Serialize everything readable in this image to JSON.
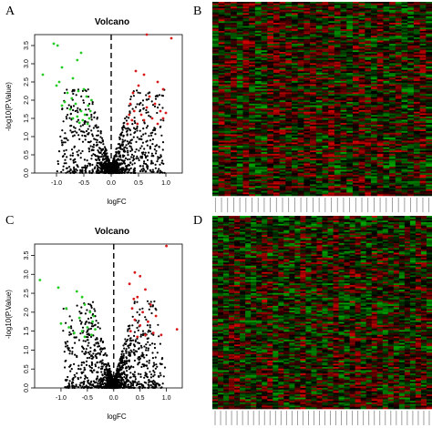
{
  "panels": [
    {
      "letter": "A"
    },
    {
      "letter": "B"
    },
    {
      "letter": "C"
    },
    {
      "letter": "D"
    }
  ],
  "colors": {
    "up": "#d7191c",
    "down": "#22cc22",
    "ns": "#000000",
    "heat_low": "#00a000",
    "heat_mid": "#000000",
    "heat_high": "#d00000"
  },
  "chart_data": [
    {
      "panel": "A",
      "type": "scatter",
      "title": "Volcano",
      "xlabel": "logFC",
      "ylabel": "-log10(P.Value)",
      "xlim": [
        -1.4,
        1.3
      ],
      "ylim": [
        0,
        3.8
      ],
      "xticks": [
        "-1.0",
        "-0.5",
        "0.0",
        "0.5",
        "1.0"
      ],
      "xtick_values": [
        -1.0,
        -0.5,
        0.0,
        0.5,
        1.0
      ],
      "yticks": [
        "0.0",
        "0.5",
        "1.0",
        "1.5",
        "2.0",
        "2.5",
        "3.0",
        "3.5"
      ],
      "ytick_values": [
        0,
        0.5,
        1,
        1.5,
        2,
        2.5,
        3,
        3.5
      ],
      "reference_line_x": 0,
      "series": [
        {
          "name": "down",
          "color": "#22cc22",
          "points": [
            [
              -1.05,
              3.55
            ],
            [
              -0.98,
              3.5
            ],
            [
              -1.25,
              2.7
            ],
            [
              -0.9,
              2.9
            ],
            [
              -0.7,
              2.6
            ],
            [
              -0.55,
              3.3
            ],
            [
              -0.62,
              3.1
            ],
            [
              -1.0,
              2.4
            ],
            [
              -0.95,
              2.5
            ],
            [
              -0.8,
              2.2
            ],
            [
              -0.72,
              2.05
            ],
            [
              -0.85,
              1.95
            ],
            [
              -0.6,
              2.25
            ],
            [
              -0.5,
              2.3
            ],
            [
              -0.45,
              2.1
            ],
            [
              -0.42,
              1.85
            ],
            [
              -0.55,
              1.7
            ],
            [
              -0.65,
              1.9
            ],
            [
              -0.75,
              1.75
            ],
            [
              -0.48,
              1.6
            ],
            [
              -0.4,
              1.5
            ],
            [
              -0.52,
              1.45
            ],
            [
              -0.62,
              1.55
            ],
            [
              -0.38,
              1.7
            ],
            [
              -0.43,
              1.35
            ],
            [
              -0.58,
              1.38
            ],
            [
              -0.7,
              1.5
            ],
            [
              -0.36,
              2.0
            ],
            [
              -0.9,
              1.85
            ]
          ]
        },
        {
          "name": "up",
          "color": "#d7191c",
          "points": [
            [
              0.65,
              3.8
            ],
            [
              1.1,
              3.7
            ],
            [
              0.45,
              2.8
            ],
            [
              0.6,
              2.7
            ],
            [
              0.85,
              2.5
            ],
            [
              0.95,
              2.3
            ],
            [
              0.4,
              2.2
            ],
            [
              0.5,
              2.4
            ],
            [
              0.7,
              2.1
            ],
            [
              0.8,
              1.9
            ],
            [
              0.35,
              1.9
            ],
            [
              0.42,
              1.7
            ],
            [
              0.55,
              1.6
            ],
            [
              0.65,
              1.8
            ],
            [
              0.9,
              1.7
            ],
            [
              1.0,
              1.65
            ],
            [
              0.38,
              1.45
            ],
            [
              0.48,
              1.35
            ],
            [
              0.6,
              1.45
            ],
            [
              0.75,
              1.5
            ],
            [
              0.33,
              1.6
            ],
            [
              0.85,
              1.35
            ],
            [
              0.95,
              1.5
            ],
            [
              0.3,
              1.35
            ]
          ]
        }
      ],
      "background_cloud": {
        "name": "not significant",
        "color": "#000000",
        "n": 1400
      }
    },
    {
      "panel": "C",
      "type": "scatter",
      "title": "Volcano",
      "xlabel": "logFC",
      "ylabel": "-log10(P.Value)",
      "xlim": [
        -1.5,
        1.3
      ],
      "ylim": [
        0,
        3.8
      ],
      "xticks": [
        "-1.0",
        "-0.5",
        "0.0",
        "0.5",
        "1.0"
      ],
      "xtick_values": [
        -1.0,
        -0.5,
        0.0,
        0.5,
        1.0
      ],
      "yticks": [
        "0.0",
        "0.5",
        "1.0",
        "1.5",
        "2.0",
        "2.5",
        "3.0",
        "3.5"
      ],
      "ytick_values": [
        0,
        0.5,
        1,
        1.5,
        2,
        2.5,
        3,
        3.5
      ],
      "reference_line_x": 0,
      "series": [
        {
          "name": "down",
          "color": "#22cc22",
          "points": [
            [
              -1.4,
              2.85
            ],
            [
              -1.05,
              2.65
            ],
            [
              -0.9,
              2.1
            ],
            [
              -0.7,
              2.55
            ],
            [
              -0.6,
              2.4
            ],
            [
              -0.55,
              2.2
            ],
            [
              -1.0,
              1.7
            ],
            [
              -0.45,
              2.0
            ],
            [
              -0.4,
              1.75
            ],
            [
              -0.5,
              1.6
            ],
            [
              -0.65,
              1.85
            ],
            [
              -0.75,
              1.45
            ],
            [
              -0.42,
              1.4
            ],
            [
              -0.55,
              1.35
            ],
            [
              -0.35,
              1.55
            ],
            [
              -0.85,
              1.6
            ],
            [
              -0.6,
              1.5
            ],
            [
              -0.38,
              1.9
            ]
          ]
        },
        {
          "name": "up",
          "color": "#d7191c",
          "points": [
            [
              1.0,
              3.75
            ],
            [
              0.4,
              3.05
            ],
            [
              0.5,
              2.95
            ],
            [
              0.3,
              2.75
            ],
            [
              0.6,
              2.6
            ],
            [
              0.45,
              2.4
            ],
            [
              0.7,
              2.2
            ],
            [
              0.35,
              2.1
            ],
            [
              0.55,
              2.0
            ],
            [
              0.8,
              1.9
            ],
            [
              0.4,
              1.8
            ],
            [
              0.65,
              1.75
            ],
            [
              0.5,
              1.65
            ],
            [
              1.2,
              1.55
            ],
            [
              0.32,
              1.5
            ],
            [
              0.75,
              1.45
            ],
            [
              0.9,
              1.4
            ],
            [
              0.45,
              1.35
            ],
            [
              0.6,
              1.4
            ],
            [
              0.38,
              2.35
            ]
          ]
        }
      ],
      "background_cloud": {
        "name": "not significant",
        "color": "#000000",
        "n": 1600
      }
    },
    {
      "panel": "B",
      "type": "heatmap",
      "rows": 120,
      "cols": 36,
      "value_range": [
        -1,
        1
      ]
    },
    {
      "panel": "D",
      "type": "heatmap",
      "rows": 120,
      "cols": 40,
      "value_range": [
        -1,
        1
      ]
    }
  ]
}
